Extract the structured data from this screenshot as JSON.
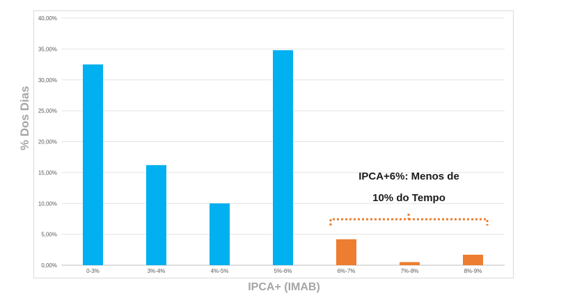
{
  "chart_data": {
    "type": "bar",
    "categories": [
      "0-3%",
      "3%-4%",
      "4%-5%",
      "5%-6%",
      "6%-7%",
      "7%-8%",
      "8%-9%"
    ],
    "values": [
      32.5,
      16.2,
      10.0,
      34.8,
      4.2,
      0.5,
      1.7
    ],
    "bar_colors": [
      "#00b0f0",
      "#00b0f0",
      "#00b0f0",
      "#00b0f0",
      "#ed7d31",
      "#ed7d31",
      "#ed7d31"
    ],
    "ylim": [
      0,
      40
    ],
    "yticks": [
      "0,00%",
      "5,00%",
      "10,00%",
      "15,00%",
      "20,00%",
      "25,00%",
      "30,00%",
      "35,00%",
      "40,00%"
    ],
    "ylabel": "% Dos Dias",
    "xlabel": "IPCA+ (IMAB)",
    "grid": true,
    "annotation": {
      "line1": "IPCA+6%: Menos de",
      "line2": "10% do Tempo",
      "color": "#ed7d31"
    }
  }
}
